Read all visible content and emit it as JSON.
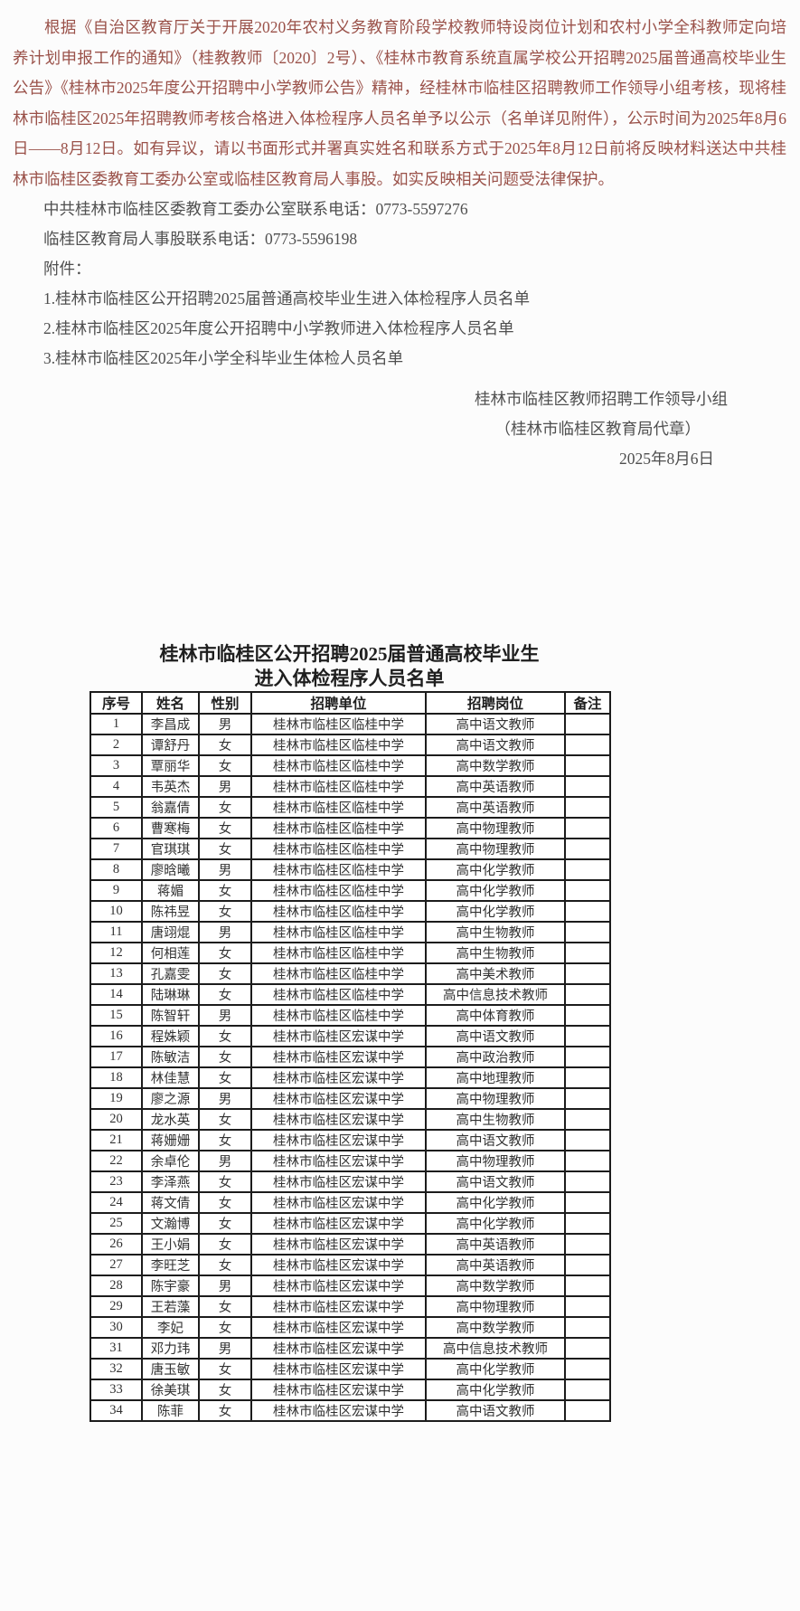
{
  "colors": {
    "announcement_text": "#9a5149",
    "body_text": "#4f4f4f",
    "table_text": "#323232",
    "table_border": "#1c1c1c",
    "background": "#fcfcfc"
  },
  "announcement": {
    "body": "根据《自治区教育厅关于开展2020年农村义务教育阶段学校教师特设岗位计划和农村小学全科教师定向培养计划申报工作的通知》（桂教教师〔2020〕2号）、《桂林市教育系统直属学校公开招聘2025届普通高校毕业生公告》《桂林市2025年度公开招聘中小学教师公告》精神，经桂林市临桂区招聘教师工作领导小组考核，现将桂林市临桂区2025年招聘教师考核合格进入体检程序人员名单予以公示（名单详见附件），公示时间为2025年8月6日——8月12日。如有异议，请以书面形式并署真实姓名和联系方式于2025年8月12日前将反映材料送达中共桂林市临桂区委教育工委办公室或临桂区教育局人事股。如实反映相关问题受法律保护。",
    "contact_line1": "中共桂林市临桂区委教育工委办公室联系电话：0773-5597276",
    "contact_line2": "临桂区教育局人事股联系电话：0773-5596198",
    "attachments_label": "附件：",
    "attachments": [
      "1.桂林市临桂区公开招聘2025届普通高校毕业生进入体检程序人员名单",
      "2.桂林市临桂区2025年度公开招聘中小学教师进入体检程序人员名单",
      "3.桂林市临桂区2025年小学全科毕业生体检人员名单"
    ],
    "signature_org": "桂林市临桂区教师招聘工作领导小组",
    "signature_note": "（桂林市临桂区教育局代章）",
    "signature_date": "2025年8月6日"
  },
  "table": {
    "title_line1": "桂林市临桂区公开招聘2025届普通高校毕业生",
    "title_line2": "进入体检程序人员名单",
    "headers": [
      "序号",
      "姓名",
      "性别",
      "招聘单位",
      "招聘岗位",
      "备注"
    ],
    "rows": [
      [
        "1",
        "李昌成",
        "男",
        "桂林市临桂区临桂中学",
        "高中语文教师",
        ""
      ],
      [
        "2",
        "谭舒丹",
        "女",
        "桂林市临桂区临桂中学",
        "高中语文教师",
        ""
      ],
      [
        "3",
        "覃丽华",
        "女",
        "桂林市临桂区临桂中学",
        "高中数学教师",
        ""
      ],
      [
        "4",
        "韦英杰",
        "男",
        "桂林市临桂区临桂中学",
        "高中英语教师",
        ""
      ],
      [
        "5",
        "翁嘉倩",
        "女",
        "桂林市临桂区临桂中学",
        "高中英语教师",
        ""
      ],
      [
        "6",
        "曹寒梅",
        "女",
        "桂林市临桂区临桂中学",
        "高中物理教师",
        ""
      ],
      [
        "7",
        "官琪琪",
        "女",
        "桂林市临桂区临桂中学",
        "高中物理教师",
        ""
      ],
      [
        "8",
        "廖晗曦",
        "男",
        "桂林市临桂区临桂中学",
        "高中化学教师",
        ""
      ],
      [
        "9",
        "蒋媚",
        "女",
        "桂林市临桂区临桂中学",
        "高中化学教师",
        ""
      ],
      [
        "10",
        "陈祎昱",
        "女",
        "桂林市临桂区临桂中学",
        "高中化学教师",
        ""
      ],
      [
        "11",
        "唐翊焜",
        "男",
        "桂林市临桂区临桂中学",
        "高中生物教师",
        ""
      ],
      [
        "12",
        "何相莲",
        "女",
        "桂林市临桂区临桂中学",
        "高中生物教师",
        ""
      ],
      [
        "13",
        "孔嘉雯",
        "女",
        "桂林市临桂区临桂中学",
        "高中美术教师",
        ""
      ],
      [
        "14",
        "陆琳琳",
        "女",
        "桂林市临桂区临桂中学",
        "高中信息技术教师",
        ""
      ],
      [
        "15",
        "陈智轩",
        "男",
        "桂林市临桂区临桂中学",
        "高中体育教师",
        ""
      ],
      [
        "16",
        "程姝颖",
        "女",
        "桂林市临桂区宏谋中学",
        "高中语文教师",
        ""
      ],
      [
        "17",
        "陈敏洁",
        "女",
        "桂林市临桂区宏谋中学",
        "高中政治教师",
        ""
      ],
      [
        "18",
        "林佳慧",
        "女",
        "桂林市临桂区宏谋中学",
        "高中地理教师",
        ""
      ],
      [
        "19",
        "廖之源",
        "男",
        "桂林市临桂区宏谋中学",
        "高中物理教师",
        ""
      ],
      [
        "20",
        "龙水英",
        "女",
        "桂林市临桂区宏谋中学",
        "高中生物教师",
        ""
      ],
      [
        "21",
        "蒋姗姗",
        "女",
        "桂林市临桂区宏谋中学",
        "高中语文教师",
        ""
      ],
      [
        "22",
        "余卓伦",
        "男",
        "桂林市临桂区宏谋中学",
        "高中物理教师",
        ""
      ],
      [
        "23",
        "李泽燕",
        "女",
        "桂林市临桂区宏谋中学",
        "高中语文教师",
        ""
      ],
      [
        "24",
        "蒋文倩",
        "女",
        "桂林市临桂区宏谋中学",
        "高中化学教师",
        ""
      ],
      [
        "25",
        "文瀚博",
        "女",
        "桂林市临桂区宏谋中学",
        "高中化学教师",
        ""
      ],
      [
        "26",
        "王小娟",
        "女",
        "桂林市临桂区宏谋中学",
        "高中英语教师",
        ""
      ],
      [
        "27",
        "李旺芝",
        "女",
        "桂林市临桂区宏谋中学",
        "高中英语教师",
        ""
      ],
      [
        "28",
        "陈宇豪",
        "男",
        "桂林市临桂区宏谋中学",
        "高中数学教师",
        ""
      ],
      [
        "29",
        "王若藻",
        "女",
        "桂林市临桂区宏谋中学",
        "高中物理教师",
        ""
      ],
      [
        "30",
        "李妃",
        "女",
        "桂林市临桂区宏谋中学",
        "高中数学教师",
        ""
      ],
      [
        "31",
        "邓力玮",
        "男",
        "桂林市临桂区宏谋中学",
        "高中信息技术教师",
        ""
      ],
      [
        "32",
        "唐玉敏",
        "女",
        "桂林市临桂区宏谋中学",
        "高中化学教师",
        ""
      ],
      [
        "33",
        "徐美琪",
        "女",
        "桂林市临桂区宏谋中学",
        "高中化学教师",
        ""
      ],
      [
        "34",
        "陈菲",
        "女",
        "桂林市临桂区宏谋中学",
        "高中语文教师",
        ""
      ]
    ]
  }
}
